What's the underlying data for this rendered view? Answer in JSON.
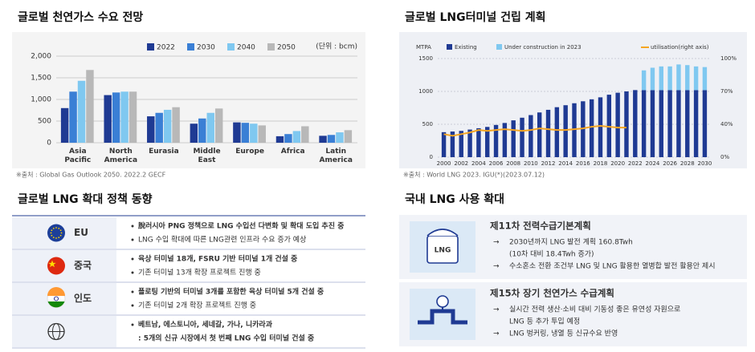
{
  "chart_data": [
    {
      "type": "bar",
      "title": "글로벌 천연가스 수요 전망",
      "unit": "(단위 : bcm)",
      "source": "※출처 : Global Gas Outlook 2050. 2022.2 GECF",
      "categories": [
        "Asia Pacific",
        "North America",
        "Eurasia",
        "Middle East",
        "Europe",
        "Africa",
        "Latin America"
      ],
      "series": [
        {
          "name": "2022",
          "color": "#1f3a93",
          "values": [
            800,
            1100,
            610,
            440,
            470,
            150,
            160
          ]
        },
        {
          "name": "2030",
          "color": "#3a7fd5",
          "values": [
            1180,
            1160,
            690,
            560,
            460,
            200,
            180
          ]
        },
        {
          "name": "2040",
          "color": "#7fc8f0",
          "values": [
            1430,
            1180,
            760,
            690,
            440,
            270,
            240
          ]
        },
        {
          "name": "2050",
          "color": "#b8b8b8",
          "values": [
            1680,
            1180,
            820,
            790,
            400,
            380,
            290
          ]
        }
      ],
      "ylim": [
        0,
        2000
      ],
      "yticks": [
        0,
        500,
        {
          "value": 1000,
          "label": "1,000"
        },
        {
          "value": 1500,
          "label": "1,500"
        },
        {
          "value": 2000,
          "label": "2,000"
        }
      ],
      "grid": true
    },
    {
      "type": "bar",
      "stacked": true,
      "title": "글로벌 LNG터미널 건립 계획",
      "ylabel": "MTPA",
      "source": "※출처 : World LNG 2023. IGU(*)(2023.07.12)",
      "x": [
        2000,
        2001,
        2002,
        2003,
        2004,
        2005,
        2006,
        2007,
        2008,
        2009,
        2010,
        2011,
        2012,
        2013,
        2014,
        2015,
        2016,
        2017,
        2018,
        2019,
        2020,
        2021,
        2022,
        2023,
        2024,
        2025,
        2026,
        2027,
        2028,
        2029,
        2030
      ],
      "xlim": [
        1999.3,
        2030.7
      ],
      "xticks": [
        2000,
        2002,
        2004,
        2006,
        2008,
        2010,
        2012,
        2014,
        2016,
        2018,
        2020,
        2022,
        2024,
        2026,
        2028,
        2030
      ],
      "series": [
        {
          "name": "Existing",
          "color": "#1f3a93",
          "values": [
            380,
            390,
            400,
            420,
            440,
            460,
            490,
            520,
            560,
            600,
            640,
            680,
            720,
            760,
            790,
            820,
            850,
            880,
            910,
            950,
            980,
            1000,
            1020,
            1020,
            1020,
            1020,
            1020,
            1020,
            1020,
            1020,
            1020
          ]
        },
        {
          "name": "Under construction in 2023",
          "color": "#7fc8f0",
          "values": [
            null,
            null,
            null,
            null,
            null,
            null,
            null,
            null,
            null,
            null,
            null,
            null,
            null,
            null,
            null,
            null,
            null,
            null,
            null,
            null,
            null,
            null,
            null,
            300,
            340,
            360,
            360,
            390,
            380,
            360,
            350
          ]
        },
        {
          "name": "utilisation(right axis)",
          "type": "line",
          "axis": "y2",
          "color": "#f5a623",
          "values": [
            28,
            26,
            28,
            30,
            33,
            32,
            33,
            34,
            33,
            32,
            33,
            35,
            34,
            33,
            33,
            34,
            35,
            37,
            38,
            37,
            36,
            36,
            null,
            null,
            null,
            null,
            null,
            null,
            null,
            null,
            null
          ]
        }
      ],
      "ylim": [
        0,
        1500
      ],
      "yticks": [
        0,
        500,
        1000,
        1500
      ],
      "y2lim": [
        0,
        100
      ],
      "y2ticks": [
        {
          "value": 0,
          "label": "0%"
        },
        {
          "value": 40,
          "label": "40%"
        },
        {
          "value": 70,
          "label": "70%"
        },
        {
          "value": 100,
          "label": "100%"
        }
      ],
      "grid": true
    }
  ],
  "policy": {
    "title": "글로벌 LNG 확대 정책 동향",
    "rows": [
      {
        "label": "EU",
        "items": [
          [
            "脫러시아 PNG 정책으로 LNG 수입선 다변화 및 확대 도입 추진 중"
          ],
          [
            "LNG 수입 확대에 따른 LNG관련 인프라 수요 증가 예상"
          ]
        ]
      },
      {
        "label": "중국",
        "items": [
          [
            "육상 터미널 18개, FSRU 기반 터미널 1개 건설 중"
          ],
          [
            "기존 터미널 13개 확장 프로젝트 진행 중"
          ]
        ]
      },
      {
        "label": "인도",
        "items": [
          [
            "플로팅 기반의 터미널 3개를 포함한 육상 터미널 5개 건설 중"
          ],
          [
            "기존 터미널 2개 확장 프로젝트 진행 중"
          ]
        ]
      },
      {
        "items": [
          [
            "베트남, 에스토니아, 세네갈, 가나, 니카라과",
            ": 5개의 신규 시장에서 첫 번째 LNG 수입 터미널 건설 중"
          ]
        ]
      }
    ]
  },
  "domestic": {
    "title": "국내 LNG 사용 확대",
    "icon_text": "LNG",
    "boxes": [
      {
        "title": "제11차 전력수급기본계획",
        "items": [
          [
            "2030년까지 LNG 발전 계획 160.8Twh",
            "(10차 대비 18.4Twh 증가)"
          ],
          [
            "수소혼소 전환 조건부 LNG 및 LNG 활용한 열병합 발전 활용안 제시"
          ]
        ]
      },
      {
        "title": "제15차 장기 천연가스 수급계획",
        "items": [
          [
            "실시간 전력 생산·소비 대비 기동성 좋은 유연성 자원으로",
            "LNG 등 추가 투입 예정"
          ],
          [
            "LNG 벙커링, 냉열 등 신규수요 반영"
          ]
        ]
      }
    ]
  }
}
